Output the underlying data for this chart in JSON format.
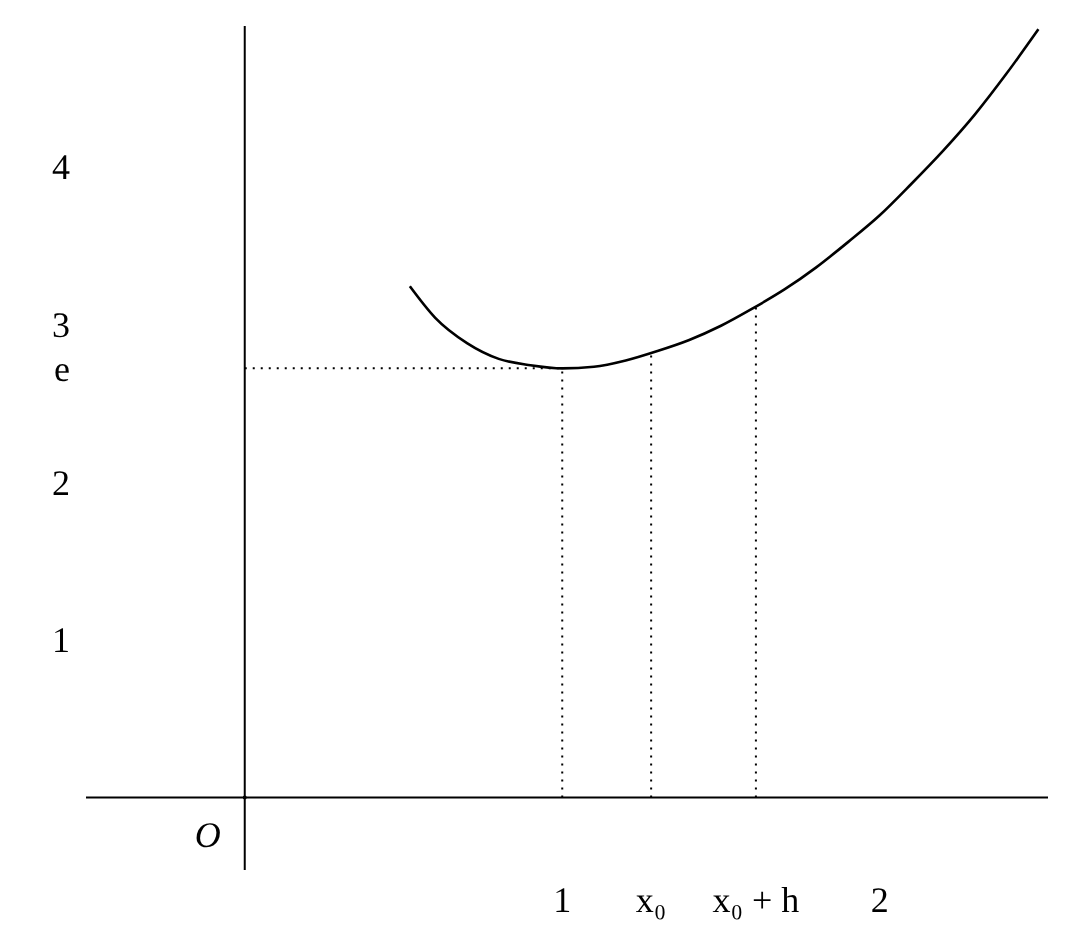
{
  "chart_data": {
    "type": "line",
    "x": [
      0.52,
      0.6,
      0.7,
      0.8,
      0.9,
      1,
      1.1,
      1.2,
      1.3,
      1.4,
      1.5,
      1.6,
      1.7,
      1.8,
      1.9,
      2,
      2.1,
      2.2,
      2.3,
      2.4,
      2.5
    ],
    "series": [
      {
        "color": "#000000",
        "values": [
          3.24,
          3.04,
          2.88,
          2.78,
          2.74,
          2.72,
          2.73,
          2.77,
          2.83,
          2.9,
          2.99,
          3.1,
          3.22,
          3.36,
          3.52,
          3.69,
          3.89,
          4.1,
          4.33,
          4.59,
          4.87
        ]
      }
    ],
    "xlim": [
      -0.5,
      2.53
    ],
    "ylim": [
      -0.46,
      4.89
    ],
    "xticks": [
      1,
      {
        "value": 1.28,
        "label": "x₀"
      },
      {
        "value": 1.61,
        "label": "x₀ + h"
      },
      2
    ],
    "yticks": [
      1,
      2,
      {
        "value": 2.72,
        "label": "e"
      },
      3,
      4
    ],
    "ref_lines": [
      {
        "axis": "x",
        "value": 1,
        "line_style": "dotted",
        "color": "#000000"
      },
      {
        "axis": "x",
        "value": 1.28,
        "line_style": "dotted",
        "color": "#000000"
      },
      {
        "axis": "x",
        "value": 1.61,
        "line_style": "dotted",
        "color": "#000000"
      },
      {
        "axis": "y",
        "value": 2.72,
        "line_style": "dotted",
        "color": "#000000"
      }
    ],
    "annotations": [
      "O"
    ],
    "marker": "none",
    "line_style": "solid",
    "grid": false,
    "legend": false
  }
}
